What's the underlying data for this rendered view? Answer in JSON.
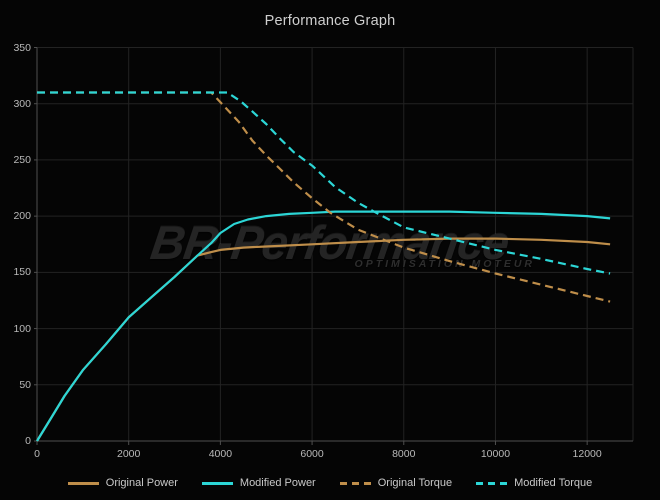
{
  "chart": {
    "title": "Performance Graph"
  },
  "watermark": {
    "line1": "BR-Performance",
    "line2": "OPTIMISATION MOTEUR"
  },
  "colors": {
    "background": "#050505",
    "grid": "#232323",
    "axis": "#4f4f4f",
    "title_text": "#cfcfcf",
    "tick_text": "#b9b9b9",
    "legend_text": "#c9c9c9",
    "watermark_text": "#242424",
    "accent_cyan": "#2cd6d6",
    "accent_tan": "#bf8e4a"
  },
  "chart_data": {
    "type": "line",
    "title": "Performance Graph",
    "xlabel": "",
    "ylabel": "",
    "xlim": [
      0,
      13000
    ],
    "ylim": [
      0,
      350
    ],
    "x_ticks": [
      0,
      2000,
      4000,
      6000,
      8000,
      10000,
      12000
    ],
    "x_tick_labels": [
      "0",
      "2000",
      "4000",
      "6000",
      "8000",
      "10000",
      "12000"
    ],
    "y_ticks": [
      0,
      50,
      100,
      150,
      200,
      250,
      300,
      350
    ],
    "y_tick_labels": [
      "0",
      "50",
      "100",
      "150",
      "200",
      "250",
      "300",
      "350"
    ],
    "grid": true,
    "legend_position": "bottom",
    "series": [
      {
        "name": "Original Power",
        "style": "solid",
        "color": "#bf8e4a",
        "points": [
          [
            0,
            0
          ],
          [
            300,
            20
          ],
          [
            600,
            40
          ],
          [
            1000,
            63
          ],
          [
            1500,
            86
          ],
          [
            2000,
            110
          ],
          [
            2500,
            128
          ],
          [
            3000,
            146
          ],
          [
            3500,
            165
          ],
          [
            3800,
            168
          ],
          [
            4000,
            170
          ],
          [
            4500,
            172
          ],
          [
            5000,
            173
          ],
          [
            6000,
            175
          ],
          [
            7000,
            177
          ],
          [
            8000,
            179
          ],
          [
            9000,
            180
          ],
          [
            10000,
            180
          ],
          [
            11000,
            179
          ],
          [
            12000,
            177
          ],
          [
            12500,
            175
          ]
        ]
      },
      {
        "name": "Modified Power",
        "style": "solid",
        "color": "#2cd6d6",
        "points": [
          [
            0,
            0
          ],
          [
            300,
            20
          ],
          [
            600,
            40
          ],
          [
            1000,
            63
          ],
          [
            1500,
            86
          ],
          [
            2000,
            110
          ],
          [
            2500,
            128
          ],
          [
            3000,
            146
          ],
          [
            3500,
            165
          ],
          [
            3800,
            176
          ],
          [
            4000,
            185
          ],
          [
            4300,
            193
          ],
          [
            4600,
            197
          ],
          [
            5000,
            200
          ],
          [
            5500,
            202
          ],
          [
            6000,
            203
          ],
          [
            6500,
            204
          ],
          [
            7000,
            204
          ],
          [
            8000,
            204
          ],
          [
            9000,
            204
          ],
          [
            10000,
            203
          ],
          [
            11000,
            202
          ],
          [
            12000,
            200
          ],
          [
            12500,
            198
          ]
        ]
      },
      {
        "name": "Original Torque",
        "style": "dashed",
        "color": "#bf8e4a",
        "points": [
          [
            0,
            310
          ],
          [
            3800,
            310
          ],
          [
            4100,
            297
          ],
          [
            4400,
            284
          ],
          [
            4700,
            267
          ],
          [
            5000,
            254
          ],
          [
            5300,
            242
          ],
          [
            5600,
            230
          ],
          [
            6000,
            216
          ],
          [
            6400,
            203
          ],
          [
            7000,
            188
          ],
          [
            7500,
            180
          ],
          [
            8000,
            172
          ],
          [
            9000,
            160
          ],
          [
            10000,
            149
          ],
          [
            11000,
            139
          ],
          [
            12000,
            129
          ],
          [
            12500,
            124
          ]
        ]
      },
      {
        "name": "Modified Torque",
        "style": "dashed",
        "color": "#2cd6d6",
        "points": [
          [
            0,
            310
          ],
          [
            4150,
            310
          ],
          [
            4450,
            302
          ],
          [
            4700,
            293
          ],
          [
            5000,
            282
          ],
          [
            5300,
            269
          ],
          [
            5600,
            257
          ],
          [
            6000,
            245
          ],
          [
            6500,
            226
          ],
          [
            7000,
            212
          ],
          [
            7400,
            203
          ],
          [
            8000,
            190
          ],
          [
            9000,
            180
          ],
          [
            10000,
            170
          ],
          [
            11000,
            162
          ],
          [
            12000,
            153
          ],
          [
            12500,
            149
          ]
        ]
      }
    ]
  }
}
